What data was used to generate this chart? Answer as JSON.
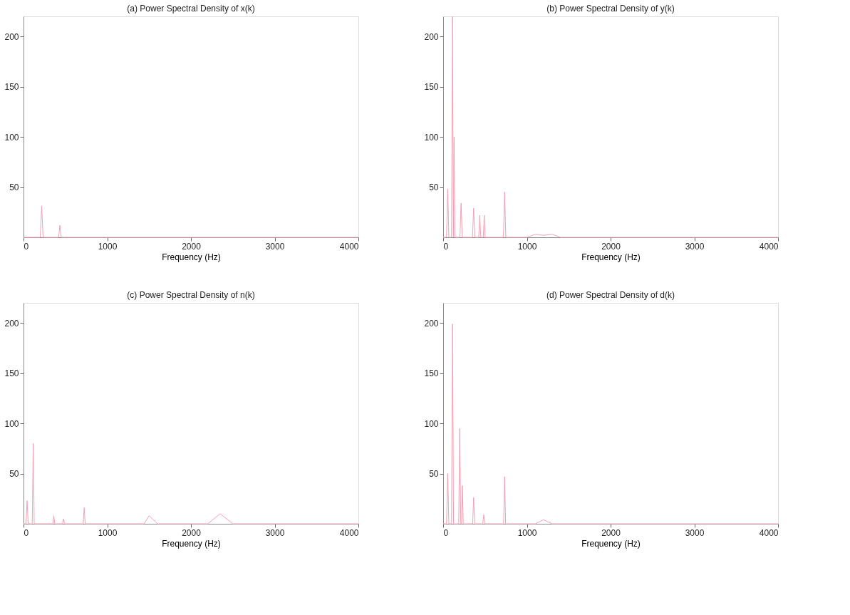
{
  "chart_data": [
    {
      "type": "line",
      "title": "(a) Power Spectral Density of x(k)",
      "xlabel": "Frequency (Hz)",
      "xlim": [
        0,
        4000
      ],
      "xticks": [
        0,
        1000,
        2000,
        3000,
        4000
      ],
      "ylim": [
        0,
        220
      ],
      "yticks": [
        50,
        100,
        150,
        200
      ],
      "grid": false,
      "series": [
        {
          "color": "#f4a0b4",
          "x": [
            0,
            200,
            217,
            234,
            420,
            435,
            450,
            4000
          ],
          "values": [
            0,
            0,
            31,
            0,
            0,
            12,
            0,
            0
          ]
        }
      ]
    },
    {
      "type": "line",
      "title": "(b) Power Spectral Density of y(k)",
      "xlabel": "Frequency (Hz)",
      "xlim": [
        0,
        4000
      ],
      "xticks": [
        0,
        1000,
        2000,
        3000,
        4000
      ],
      "ylim": [
        0,
        220
      ],
      "yticks": [
        50,
        100,
        150,
        200
      ],
      "grid": false,
      "series": [
        {
          "color": "#f4a0b4",
          "x": [
            0,
            40,
            54,
            68,
            100,
            112,
            122,
            130,
            140,
            200,
            214,
            228,
            350,
            364,
            378,
            425,
            437,
            449,
            480,
            491,
            502,
            720,
            734,
            748,
            1000,
            1100,
            1200,
            1300,
            1400,
            4000
          ],
          "values": [
            0,
            0,
            48,
            0,
            0,
            220,
            0,
            100,
            0,
            0,
            34,
            0,
            0,
            29,
            0,
            0,
            22,
            0,
            0,
            22,
            0,
            0,
            45,
            0,
            0,
            3,
            2,
            3,
            0,
            0
          ]
        }
      ]
    },
    {
      "type": "line",
      "title": "(c) Power Spectral Density of n(k)",
      "xlabel": "Frequency (Hz)",
      "xlim": [
        0,
        4000
      ],
      "xticks": [
        0,
        1000,
        2000,
        3000,
        4000
      ],
      "ylim": [
        0,
        220
      ],
      "yticks": [
        50,
        100,
        150,
        200
      ],
      "grid": false,
      "series": [
        {
          "color": "#f4a0b4",
          "x": [
            0,
            30,
            43,
            56,
            104,
            116,
            128,
            350,
            362,
            374,
            466,
            478,
            490,
            713,
            725,
            737,
            1440,
            1500,
            1600,
            2200,
            2350,
            2500,
            4000
          ],
          "values": [
            0,
            0,
            23,
            0,
            0,
            80,
            0,
            0,
            8,
            0,
            0,
            5,
            0,
            0,
            16,
            0,
            0,
            8,
            0,
            0,
            10,
            0,
            0
          ]
        }
      ]
    },
    {
      "type": "line",
      "title": "(d) Power Spectral Density of d(k)",
      "xlabel": "Frequency (Hz)",
      "xlim": [
        0,
        4000
      ],
      "xticks": [
        0,
        1000,
        2000,
        3000,
        4000
      ],
      "ylim": [
        0,
        220
      ],
      "yticks": [
        50,
        100,
        150,
        200
      ],
      "grid": false,
      "series": [
        {
          "color": "#f4a0b4",
          "x": [
            0,
            40,
            54,
            68,
            100,
            112,
            124,
            186,
            198,
            210,
            220,
            230,
            240,
            352,
            364,
            376,
            473,
            485,
            497,
            722,
            734,
            746,
            1100,
            1200,
            1300,
            4000
          ],
          "values": [
            0,
            0,
            50,
            0,
            0,
            199,
            0,
            0,
            95,
            0,
            0,
            38,
            0,
            0,
            26,
            0,
            0,
            9,
            0,
            0,
            47,
            0,
            0,
            4,
            0,
            0
          ]
        }
      ]
    }
  ]
}
